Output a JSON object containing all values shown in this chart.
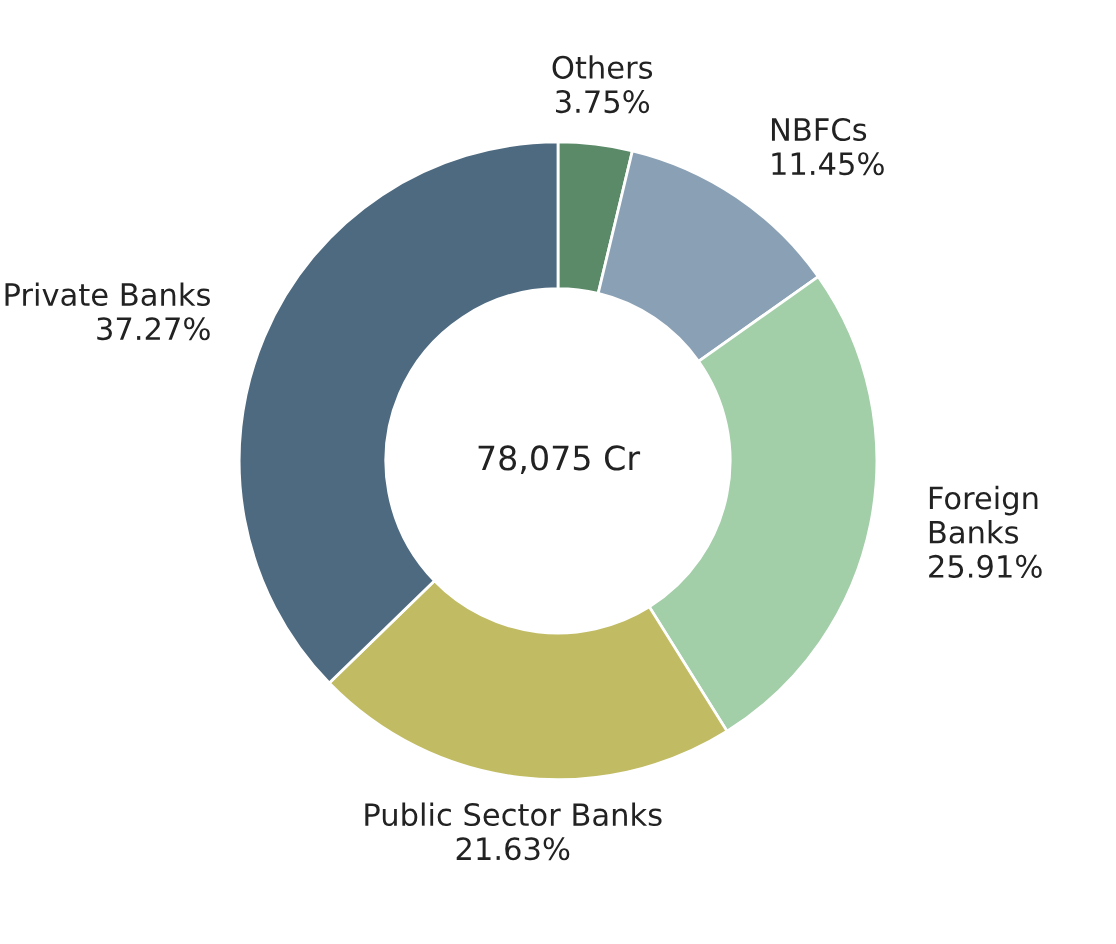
{
  "chart_data": {
    "type": "donut",
    "categories": [
      "Others",
      "NBFCs",
      "Foreign Banks",
      "Public Sector Banks",
      "Private Banks"
    ],
    "values": [
      3.75,
      11.45,
      25.91,
      21.63,
      37.27
    ],
    "value_labels": [
      "3.75%",
      "11.45%",
      "25.91%",
      "21.63%",
      "37.27%"
    ],
    "colors": [
      "#5b8a68",
      "#8aa1b5",
      "#a2cea8",
      "#c1bc63",
      "#4e6a80"
    ],
    "annotations": [
      "78,075 Cr"
    ],
    "legend": false
  }
}
